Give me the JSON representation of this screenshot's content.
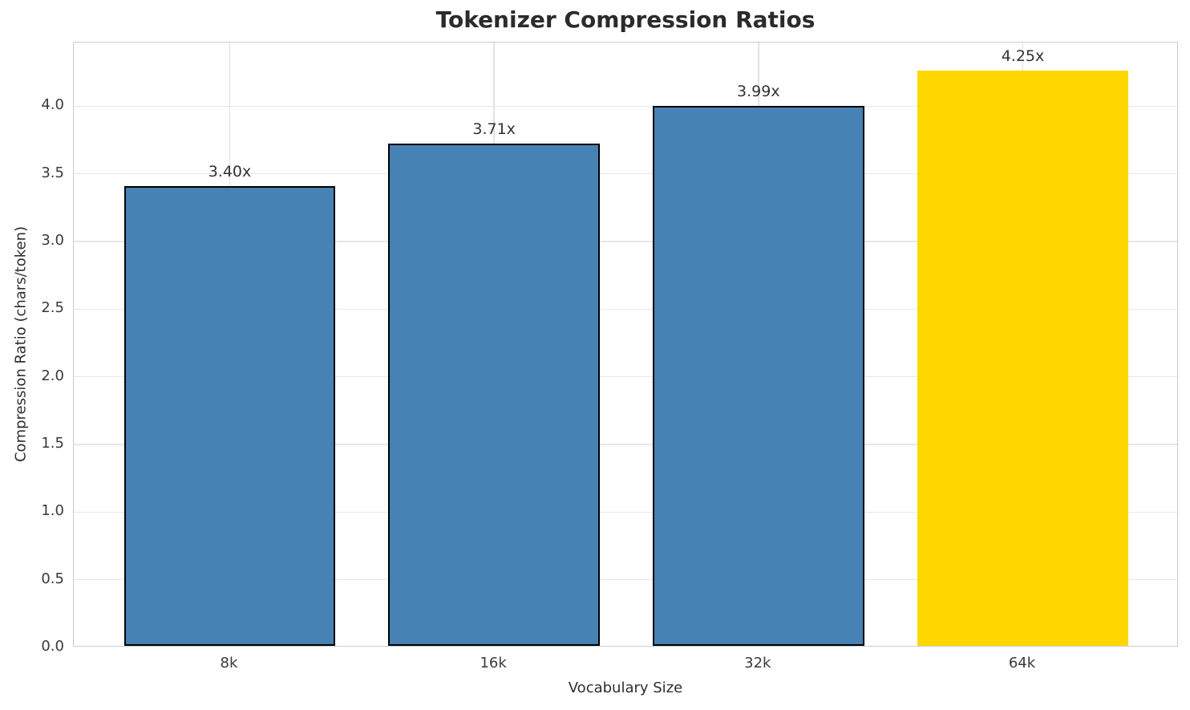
{
  "chart_data": {
    "type": "bar",
    "title": "Tokenizer Compression Ratios",
    "xlabel": "Vocabulary Size",
    "ylabel": "Compression Ratio (chars/token)",
    "categories": [
      "8k",
      "16k",
      "32k",
      "64k"
    ],
    "values": [
      3.4,
      3.71,
      3.99,
      4.25
    ],
    "bar_labels": [
      "3.40x",
      "3.71x",
      "3.99x",
      "4.25x"
    ],
    "bar_colors": [
      "#4682B4",
      "#4682B4",
      "#4682B4",
      "#FFD700"
    ],
    "bar_edge_colors": [
      "#000000",
      "#000000",
      "#000000",
      "none"
    ],
    "highlight_index": 3,
    "ylim": [
      0,
      4.47
    ],
    "xlim": [
      -0.59,
      3.59
    ],
    "bar_width_frac": 0.8,
    "yticks": [
      {
        "value": 0.0,
        "label": "0.0"
      },
      {
        "value": 0.5,
        "label": "0.5"
      },
      {
        "value": 1.0,
        "label": "1.0"
      },
      {
        "value": 1.5,
        "label": "1.5"
      },
      {
        "value": 2.0,
        "label": "2.0"
      },
      {
        "value": 2.5,
        "label": "2.5"
      },
      {
        "value": 3.0,
        "label": "3.0"
      },
      {
        "value": 3.5,
        "label": "3.5"
      },
      {
        "value": 4.0,
        "label": "4.0"
      }
    ],
    "grid": true,
    "legend": "none"
  }
}
